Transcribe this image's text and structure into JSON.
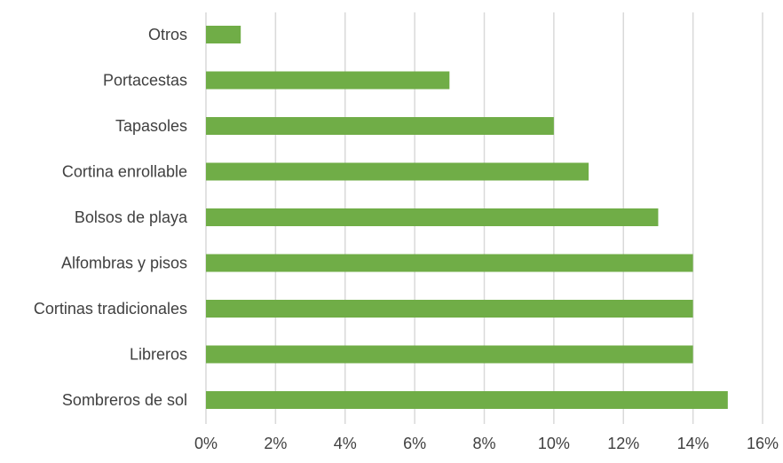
{
  "chart_data": {
    "type": "bar",
    "orientation": "horizontal",
    "categories": [
      "Otros",
      "Portacestas",
      "Tapasoles",
      "Cortina enrollable",
      "Bolsos de playa",
      "Alfombras y pisos",
      "Cortinas tradicionales",
      "Libreros",
      "Sombreros de sol"
    ],
    "values": [
      1,
      7,
      10,
      11,
      13,
      14,
      14,
      14,
      15
    ],
    "unit": "%",
    "xlim": [
      0,
      16
    ],
    "x_ticks": [
      "0%",
      "2%",
      "4%",
      "6%",
      "8%",
      "10%",
      "12%",
      "14%",
      "16%"
    ],
    "grid": true,
    "legend": "none",
    "bar_color": "#70ad47",
    "grid_color": "#d9d9d9"
  }
}
